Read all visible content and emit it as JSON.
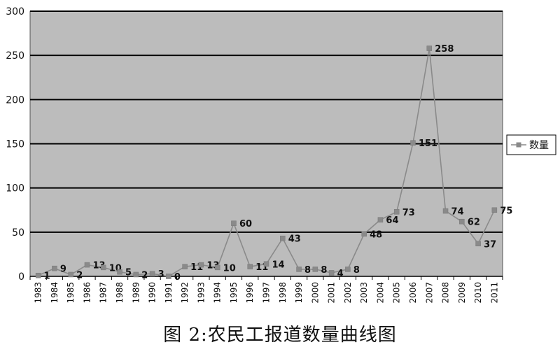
{
  "caption": "图 2:农民工报道数量曲线图",
  "chart_data": {
    "type": "line",
    "title": "",
    "xlabel": "",
    "ylabel": "",
    "categories": [
      "1983",
      "1984",
      "1985",
      "1986",
      "1987",
      "1988",
      "1989",
      "1990",
      "1991",
      "1992",
      "1993",
      "1994",
      "1995",
      "1996",
      "1997",
      "1998",
      "1999",
      "2000",
      "2001",
      "2002",
      "2003",
      "2004",
      "2005",
      "2006",
      "2007",
      "2008",
      "2009",
      "2010",
      "2011"
    ],
    "series": [
      {
        "name": "数量",
        "values": [
          1,
          9,
          2,
          13,
          10,
          5,
          2,
          3,
          0,
          11,
          13,
          10,
          60,
          11,
          14,
          43,
          8,
          8,
          4,
          8,
          48,
          64,
          73,
          151,
          258,
          74,
          62,
          37,
          75
        ]
      }
    ],
    "data_labels": [
      "1",
      "9",
      "2",
      "13",
      "10",
      "5",
      "2",
      "3",
      "0",
      "11",
      "13",
      "10",
      "60",
      "11",
      "14",
      "43",
      "8",
      "8",
      "4",
      "8",
      "48",
      "64",
      "73",
      "151",
      "258",
      "74",
      "62",
      "37",
      "75"
    ],
    "ylim": [
      0,
      300
    ],
    "yticks": [
      0,
      50,
      100,
      150,
      200,
      250,
      300
    ],
    "grid": true,
    "legend_position": "right",
    "colors": {
      "plot_bg": "#bcbcbc",
      "line": "#8a8a8a",
      "marker": "#8a8a8a",
      "grid": "#000000"
    }
  }
}
